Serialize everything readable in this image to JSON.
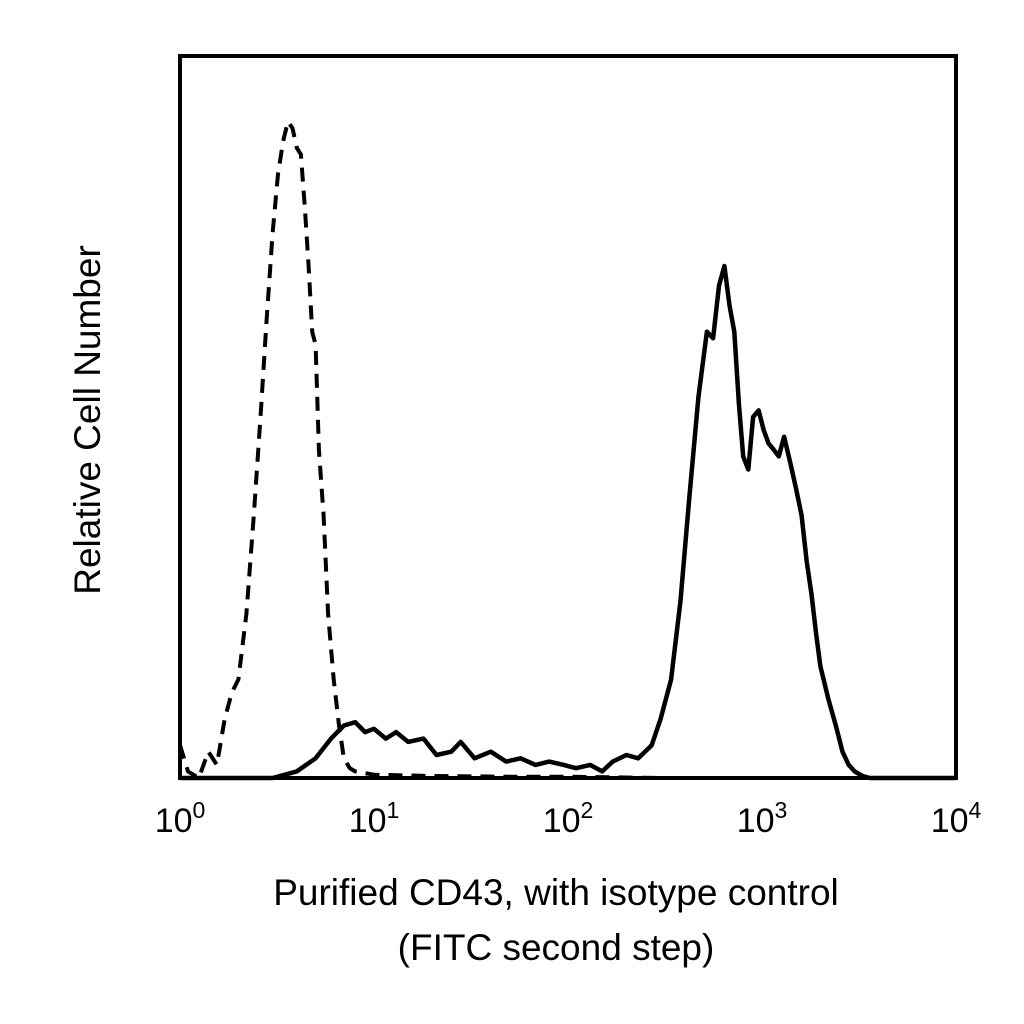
{
  "chart_data": {
    "type": "line",
    "xscale": "log",
    "xlim": [
      1,
      10000
    ],
    "ylim": [
      0,
      1.1
    ],
    "grid": false,
    "xlabel_lines": [
      "Purified CD43, with isotype control",
      "(FITC second step)"
    ],
    "ylabel": "Relative Cell Number",
    "xticks": [
      {
        "base": "10",
        "exp": "0",
        "value": 1
      },
      {
        "base": "10",
        "exp": "1",
        "value": 10
      },
      {
        "base": "10",
        "exp": "2",
        "value": 100
      },
      {
        "base": "10",
        "exp": "3",
        "value": 1000
      },
      {
        "base": "10",
        "exp": "4",
        "value": 10000
      }
    ],
    "series": [
      {
        "style": "dashed",
        "points": [
          [
            1.0,
            0.05
          ],
          [
            1.1,
            0.01
          ],
          [
            1.25,
            0.0
          ],
          [
            1.4,
            0.04
          ],
          [
            1.55,
            0.02
          ],
          [
            1.7,
            0.09
          ],
          [
            1.85,
            0.13
          ],
          [
            2.0,
            0.15
          ],
          [
            2.2,
            0.25
          ],
          [
            2.4,
            0.4
          ],
          [
            2.6,
            0.55
          ],
          [
            2.8,
            0.7
          ],
          [
            3.0,
            0.83
          ],
          [
            3.2,
            0.92
          ],
          [
            3.4,
            0.97
          ],
          [
            3.6,
            1.0
          ],
          [
            3.8,
            0.99
          ],
          [
            4.0,
            0.96
          ],
          [
            4.2,
            0.95
          ],
          [
            4.4,
            0.87
          ],
          [
            4.6,
            0.78
          ],
          [
            4.8,
            0.68
          ],
          [
            5.0,
            0.66
          ],
          [
            5.2,
            0.5
          ],
          [
            5.5,
            0.4
          ],
          [
            5.8,
            0.25
          ],
          [
            6.2,
            0.15
          ],
          [
            6.6,
            0.08
          ],
          [
            7.0,
            0.03
          ],
          [
            7.5,
            0.015
          ],
          [
            8.0,
            0.01
          ],
          [
            10,
            0.005
          ],
          [
            20,
            0.003
          ],
          [
            50,
            0.002
          ],
          [
            100,
            0.002
          ],
          [
            300,
            0.0
          ],
          [
            1000,
            0.0
          ],
          [
            3000,
            0.0
          ],
          [
            10000,
            0.0
          ]
        ]
      },
      {
        "style": "solid",
        "points": [
          [
            1.0,
            0.0
          ],
          [
            2.0,
            0.0
          ],
          [
            3.0,
            0.0
          ],
          [
            4.0,
            0.01
          ],
          [
            5.0,
            0.03
          ],
          [
            6.0,
            0.06
          ],
          [
            7.0,
            0.08
          ],
          [
            8.0,
            0.085
          ],
          [
            9.0,
            0.07
          ],
          [
            10.0,
            0.075
          ],
          [
            11.5,
            0.06
          ],
          [
            13.0,
            0.07
          ],
          [
            15.0,
            0.055
          ],
          [
            18.0,
            0.06
          ],
          [
            21.0,
            0.035
          ],
          [
            25.0,
            0.04
          ],
          [
            28.0,
            0.055
          ],
          [
            33.0,
            0.03
          ],
          [
            40.0,
            0.04
          ],
          [
            48.0,
            0.025
          ],
          [
            57.0,
            0.03
          ],
          [
            68.0,
            0.02
          ],
          [
            80.0,
            0.025
          ],
          [
            95.0,
            0.02
          ],
          [
            110.0,
            0.015
          ],
          [
            130.0,
            0.02
          ],
          [
            150.0,
            0.01
          ],
          [
            170.0,
            0.025
          ],
          [
            200.0,
            0.035
          ],
          [
            230.0,
            0.03
          ],
          [
            270.0,
            0.05
          ],
          [
            300.0,
            0.09
          ],
          [
            340.0,
            0.15
          ],
          [
            380.0,
            0.27
          ],
          [
            420.0,
            0.42
          ],
          [
            470.0,
            0.58
          ],
          [
            520.0,
            0.68
          ],
          [
            560.0,
            0.67
          ],
          [
            600.0,
            0.75
          ],
          [
            640.0,
            0.78
          ],
          [
            680.0,
            0.72
          ],
          [
            720.0,
            0.68
          ],
          [
            760.0,
            0.57
          ],
          [
            800.0,
            0.49
          ],
          [
            850.0,
            0.47
          ],
          [
            900.0,
            0.55
          ],
          [
            960.0,
            0.56
          ],
          [
            1020.0,
            0.53
          ],
          [
            1080.0,
            0.51
          ],
          [
            1150.0,
            0.5
          ],
          [
            1220.0,
            0.49
          ],
          [
            1300.0,
            0.52
          ],
          [
            1400.0,
            0.48
          ],
          [
            1500.0,
            0.44
          ],
          [
            1600.0,
            0.4
          ],
          [
            1700.0,
            0.33
          ],
          [
            1800.0,
            0.28
          ],
          [
            1900.0,
            0.22
          ],
          [
            2000.0,
            0.17
          ],
          [
            2200.0,
            0.12
          ],
          [
            2400.0,
            0.08
          ],
          [
            2600.0,
            0.04
          ],
          [
            2800.0,
            0.02
          ],
          [
            3000.0,
            0.01
          ],
          [
            3300.0,
            0.003
          ],
          [
            3600.0,
            0.0
          ],
          [
            10000.0,
            0.0
          ]
        ]
      }
    ]
  }
}
